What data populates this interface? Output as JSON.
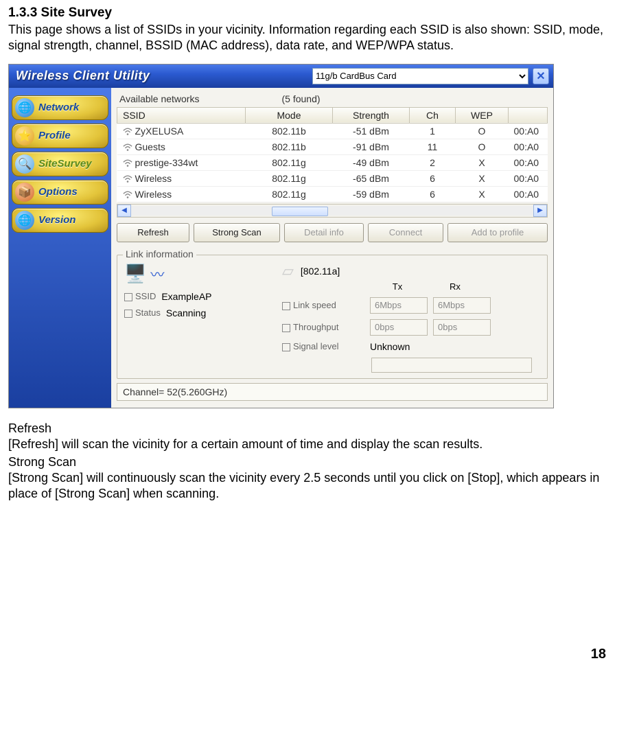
{
  "doc": {
    "heading": "1.3.3 Site Survey",
    "intro": "This page shows a list of SSIDs in your vicinity. Information regarding each SSID is also shown: SSID, mode, signal strength, channel, BSSID (MAC address), data rate, and WEP/WPA status.",
    "refresh_label": "Refresh",
    "refresh_text": "[Refresh] will scan the vicinity for a certain amount of time and display the scan results.",
    "strong_label": "Strong Scan",
    "strong_text": "[Strong Scan] will continuously scan the vicinity every 2.5 seconds until you click on [Stop], which appears in place of [Strong Scan] when scanning.",
    "page_number": "18"
  },
  "app": {
    "title": "Wireless Client Utility",
    "card_select": "11g/b CardBus Card",
    "close_glyph": "✕",
    "nav": {
      "network": "Network",
      "profile": "Profile",
      "sitesurvey": "SiteSurvey",
      "options": "Options",
      "version": "Version"
    },
    "available_label": "Available networks",
    "found_count": "(5 found)",
    "columns": {
      "ssid": "SSID",
      "mode": "Mode",
      "strength": "Strength",
      "ch": "Ch",
      "wep": "WEP",
      "extra": ""
    },
    "rows": [
      {
        "ssid": "ZyXELUSA",
        "mode": "802.11b",
        "strength": "-51 dBm",
        "ch": "1",
        "wep": "O",
        "bssid": "00:A0"
      },
      {
        "ssid": "Guests",
        "mode": "802.11b",
        "strength": "-91 dBm",
        "ch": "11",
        "wep": "O",
        "bssid": "00:A0"
      },
      {
        "ssid": "prestige-334wt",
        "mode": "802.11g",
        "strength": "-49 dBm",
        "ch": "2",
        "wep": "X",
        "bssid": "00:A0"
      },
      {
        "ssid": "Wireless",
        "mode": "802.11g",
        "strength": "-65 dBm",
        "ch": "6",
        "wep": "X",
        "bssid": "00:A0"
      },
      {
        "ssid": "Wireless",
        "mode": "802.11g",
        "strength": "-59 dBm",
        "ch": "6",
        "wep": "X",
        "bssid": "00:A0"
      }
    ],
    "buttons": {
      "refresh": "Refresh",
      "strong": "Strong Scan",
      "detail": "Detail info",
      "connect": "Connect",
      "add": "Add to profile"
    },
    "link": {
      "legend": "Link information",
      "mode_label": "[802.11a]",
      "tx_label": "Tx",
      "rx_label": "Rx",
      "ssid_label": "SSID",
      "ssid_value": "ExampleAP",
      "status_label": "Status",
      "status_value": "Scanning",
      "linkspeed_label": "Link speed",
      "linkspeed_tx": "6Mbps",
      "linkspeed_rx": "6Mbps",
      "throughput_label": "Throughput",
      "throughput_tx": "0bps",
      "throughput_rx": "0bps",
      "signal_label": "Signal level",
      "signal_value": "Unknown",
      "channel": "Channel= 52(5.260GHz)"
    }
  },
  "colors": {
    "titlebar_start": "#4a79e8",
    "titlebar_end": "#1a3fa0",
    "nav_gold_light": "#fff07a",
    "nav_gold_dark": "#b8941c",
    "nav_text": "#184a9e"
  }
}
